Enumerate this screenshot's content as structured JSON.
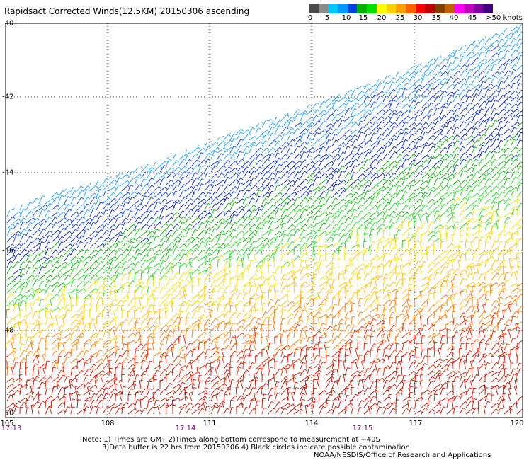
{
  "title": "Rapidsact Corrected Winds(12.5KM) 20150306 ascending",
  "colorbar": {
    "colors": [
      "#4a4a4a",
      "#8a8a8a",
      "#00c8ff",
      "#0096ff",
      "#0040e0",
      "#00b000",
      "#00e000",
      "#ffff00",
      "#ffd000",
      "#ffa000",
      "#ff6000",
      "#ff0000",
      "#c00000",
      "#804000",
      "#c06000",
      "#ff00ff",
      "#c000c0",
      "#8000a0",
      "#400080"
    ],
    "labels": [
      "0",
      "5",
      "10",
      "15",
      "20",
      "25",
      "30",
      "35",
      "40",
      "45",
      ">50 knots"
    ]
  },
  "map": {
    "lat_labels": [
      "-40",
      "-42",
      "-44",
      "-46",
      "-48",
      "-50"
    ],
    "lon_labels": [
      "105",
      "108",
      "111",
      "114",
      "117",
      "120"
    ],
    "time_labels": [
      "17:13",
      "17:14",
      "17:15"
    ],
    "bands": [
      {
        "name": "light blue",
        "color": "#1aa0ff"
      },
      {
        "name": "blue",
        "color": "#0a3ce0"
      },
      {
        "name": "dark blue",
        "color": "#0020c0"
      },
      {
        "name": "green",
        "color": "#00b400"
      },
      {
        "name": "bright green",
        "color": "#22dd22"
      },
      {
        "name": "yellow",
        "color": "#f5e000"
      },
      {
        "name": "gold",
        "color": "#ffc000"
      },
      {
        "name": "orange",
        "color": "#ff7a00"
      },
      {
        "name": "red",
        "color": "#e82000"
      },
      {
        "name": "dark red",
        "color": "#c01000"
      }
    ]
  },
  "notes": {
    "line1": "Note: 1) Times are GMT 2)Times along bottom correspond to measurement at −40S",
    "line2": "3)Data buffer is 22 hrs from 20150306 4) Black circles indicate possible contamination",
    "credit": "NOAA/NESDIS/Office of Research and Applications"
  }
}
